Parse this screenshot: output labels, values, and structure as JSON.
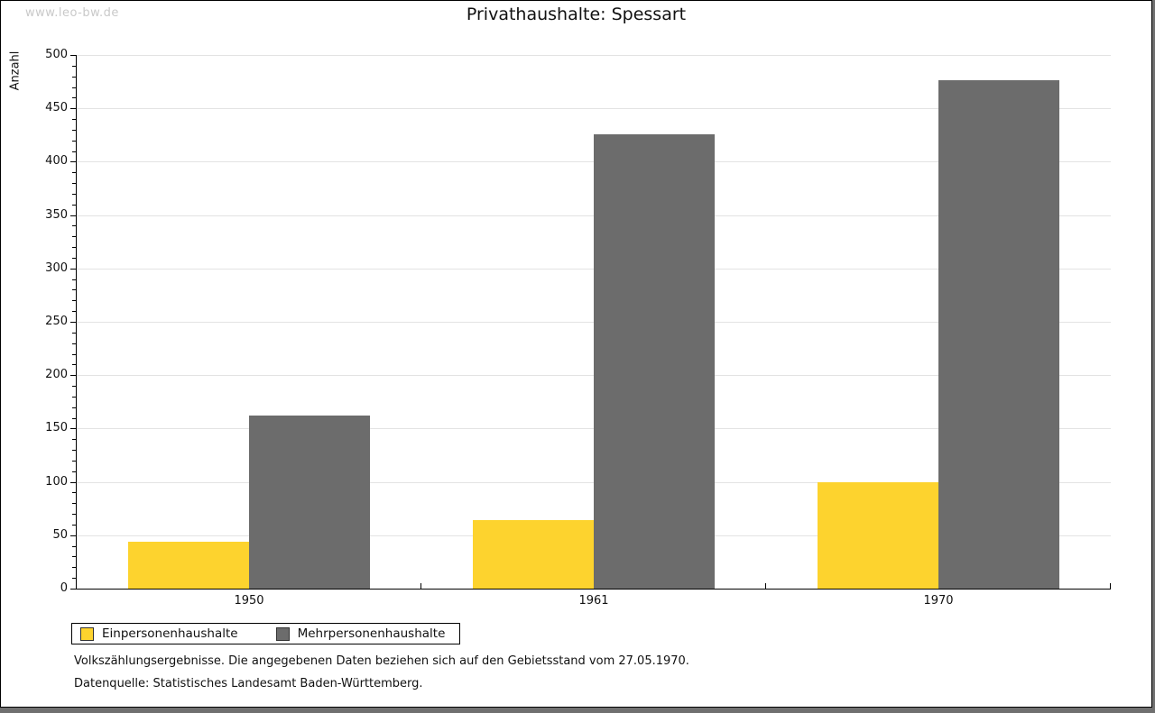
{
  "page": {
    "watermark": "www.leo-bw.de"
  },
  "chart_data": {
    "type": "bar",
    "title": "Privathaushalte: Spessart",
    "xlabel": "",
    "ylabel": "Anzahl",
    "categories": [
      "1950",
      "1961",
      "1970"
    ],
    "series": [
      {
        "name": "Einpersonenhaushalte",
        "color": "#FDD32E",
        "values": [
          44,
          64,
          100
        ]
      },
      {
        "name": "Mehrpersonenhaushalte",
        "color": "#6C6C6C",
        "values": [
          162,
          426,
          476
        ]
      }
    ],
    "ylim": [
      0,
      500
    ],
    "y_major_step": 50,
    "y_minor_step": 10,
    "grid": true,
    "legend_position": "bottom-left"
  },
  "footnotes": {
    "line1": "Volkszählungsergebnisse. Die angegebenen Daten beziehen sich auf den Gebietsstand vom 27.05.1970.",
    "line2": "Datenquelle: Statistisches Landesamt Baden-Württemberg."
  },
  "colors": {
    "grid": "#e3e3e3",
    "axis": "#000000",
    "shadow": "#707070",
    "watermark": "#c9c9c9"
  }
}
